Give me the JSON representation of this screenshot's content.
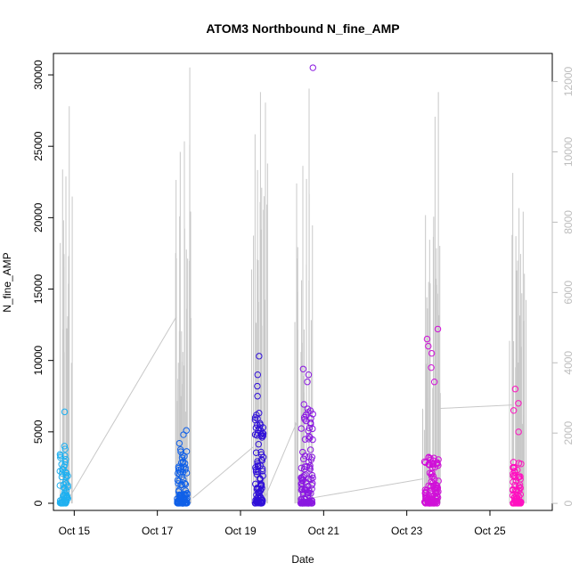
{
  "chart_data": {
    "type": "scatter",
    "title": "ATOM3 Northbound N_fine_AMP",
    "xlabel": "Date",
    "ylabel": "N_fine_AMP",
    "x_ticks": [
      "Oct 15",
      "Oct 17",
      "Oct 19",
      "Oct 21",
      "Oct 23",
      "Oct 25"
    ],
    "y_ticks_left": [
      "0",
      "5000",
      "10000",
      "15000",
      "20000",
      "25000",
      "30000"
    ],
    "y_ticks_right": [
      "0",
      "2000",
      "4000",
      "6000",
      "8000",
      "10000",
      "12000"
    ],
    "xlim": [
      "Oct 14 12:00",
      "Oct 26 12:00"
    ],
    "ylim_left": [
      -500,
      31500
    ],
    "ylim_right": [
      -200,
      12800
    ],
    "grid": false,
    "colors": {
      "line": "#c8c8c8",
      "right_axis": "#bdbdbd",
      "points_gradient": [
        "#1fb0f0",
        "#1060e8",
        "#3010d8",
        "#8a18e0",
        "#d010d8",
        "#ff10c0"
      ]
    },
    "series": [
      {
        "kind": "points-left",
        "clusters": [
          {
            "day": 14.75,
            "spread": 0.2,
            "n": 60,
            "base": [
              0,
              3500
            ],
            "outliers": [
              6400,
              4000,
              3800,
              3200
            ]
          },
          {
            "day": 17.6,
            "spread": 0.25,
            "n": 90,
            "base": [
              0,
              4000
            ],
            "outliers": [
              5100,
              4800,
              4200
            ]
          },
          {
            "day": 19.45,
            "spread": 0.2,
            "n": 90,
            "base": [
              0,
              6500
            ],
            "outliers": [
              10300,
              9000,
              8200,
              7500
            ]
          },
          {
            "day": 20.6,
            "spread": 0.3,
            "n": 110,
            "base": [
              0,
              7000
            ],
            "outliers": [
              30500,
              9400,
              9000,
              8500
            ]
          },
          {
            "day": 23.6,
            "spread": 0.35,
            "n": 110,
            "base": [
              0,
              3500
            ],
            "outliers": [
              12200,
              11500,
              11000,
              10500,
              9500,
              8500
            ]
          },
          {
            "day": 25.65,
            "spread": 0.2,
            "n": 70,
            "base": [
              0,
              3000
            ],
            "outliers": [
              8000,
              7000,
              6500,
              5000
            ]
          }
        ]
      },
      {
        "kind": "line-right",
        "peaks": [
          {
            "day": 14.72,
            "max": 9500
          },
          {
            "day": 14.8,
            "max": 9300
          },
          {
            "day": 14.88,
            "max": 11300
          },
          {
            "day": 17.45,
            "max": 9200
          },
          {
            "day": 17.55,
            "max": 10000
          },
          {
            "day": 17.65,
            "max": 10300
          },
          {
            "day": 17.78,
            "max": 12400
          },
          {
            "day": 19.35,
            "max": 10500
          },
          {
            "day": 19.48,
            "max": 11700
          },
          {
            "day": 19.6,
            "max": 11400
          },
          {
            "day": 20.35,
            "max": 9100
          },
          {
            "day": 20.5,
            "max": 9600
          },
          {
            "day": 20.65,
            "max": 11800
          },
          {
            "day": 23.45,
            "max": 8200
          },
          {
            "day": 23.55,
            "max": 7500
          },
          {
            "day": 23.68,
            "max": 11000
          },
          {
            "day": 23.76,
            "max": 11700
          },
          {
            "day": 25.55,
            "max": 9400
          },
          {
            "day": 25.7,
            "max": 8400
          },
          {
            "day": 25.8,
            "max": 8300
          }
        ],
        "connectors": [
          {
            "from": [
              14.9,
              200
            ],
            "to": [
              17.45,
              5300
            ]
          },
          {
            "from": [
              17.85,
              150
            ],
            "to": [
              19.3,
              1600
            ]
          },
          {
            "from": [
              19.6,
              200
            ],
            "to": [
              20.35,
              2300
            ]
          },
          {
            "from": [
              20.7,
              150
            ],
            "to": [
              23.4,
              700
            ]
          },
          {
            "from": [
              23.8,
              2700
            ],
            "to": [
              25.55,
              2800
            ]
          }
        ]
      }
    ]
  }
}
